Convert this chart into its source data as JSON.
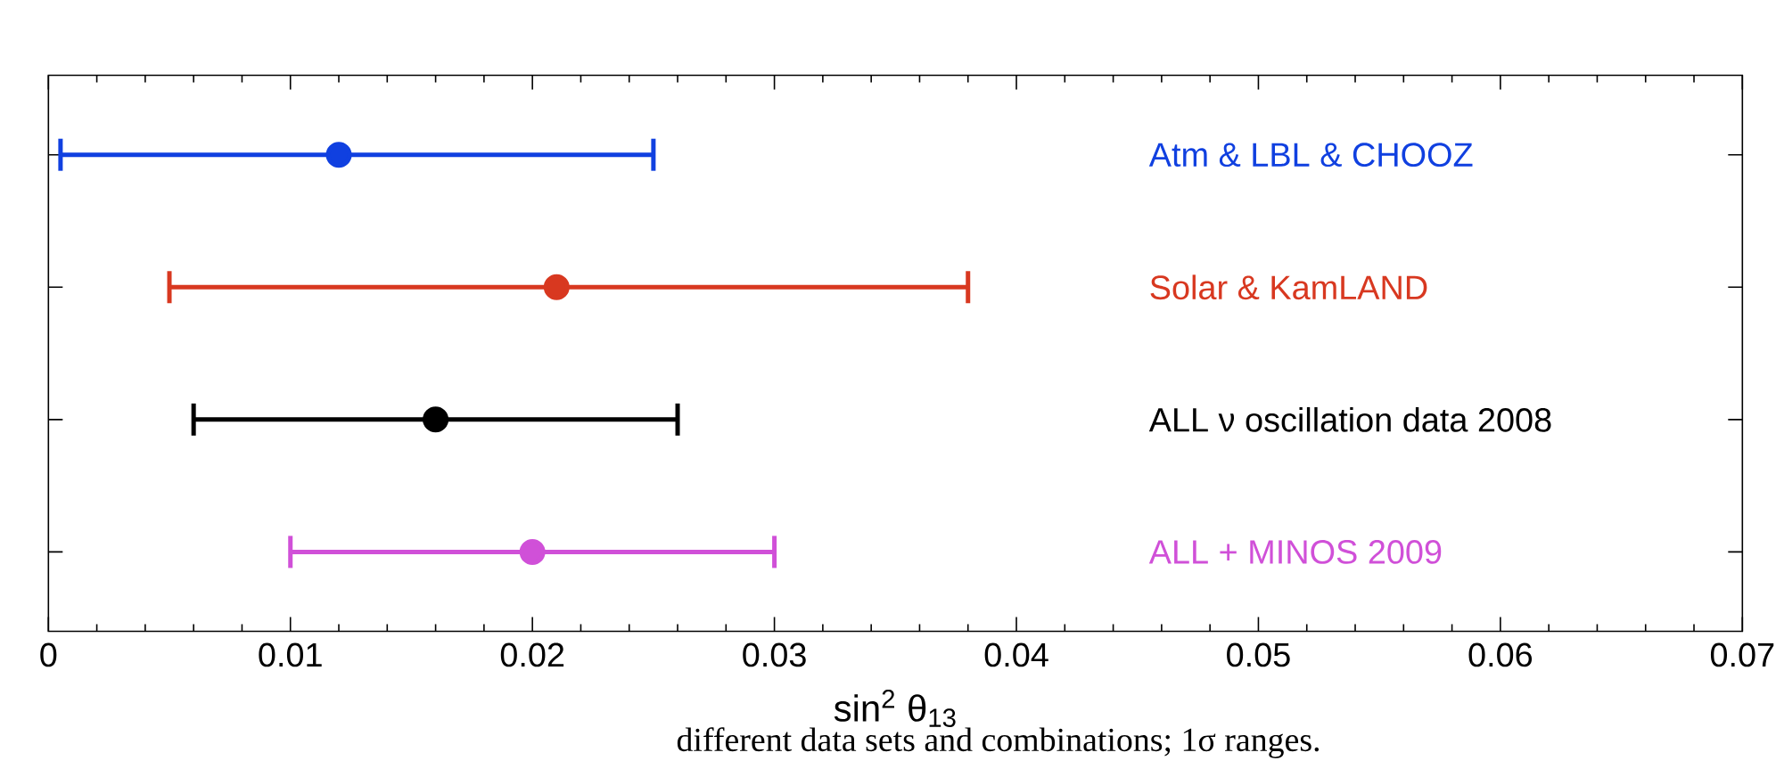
{
  "chart_data": {
    "type": "scatter",
    "orientation": "horizontal",
    "categories": [
      "Atm & LBL & CHOOZ",
      "Solar & KamLAND",
      "ALL ν oscillation data 2008",
      "ALL + MINOS 2009"
    ],
    "values": [
      0.012,
      0.021,
      0.016,
      0.02
    ],
    "errors": [
      [
        0.0005,
        0.025
      ],
      [
        0.005,
        0.038
      ],
      [
        0.006,
        0.026
      ],
      [
        0.01,
        0.03
      ]
    ],
    "colors": [
      "#1040e0",
      "#d83820",
      "#000000",
      "#d050d8"
    ],
    "xlabel": "sin$^{2}$ θ$_{13}$",
    "xlim": [
      0,
      0.07
    ],
    "xticks": [
      0,
      0.01,
      0.02,
      0.03,
      0.04,
      0.05,
      0.06,
      0.07
    ],
    "tick_labels": "x",
    "marker": "circle",
    "grid": false,
    "annotations": [
      "different data sets and combinations; 1σ ranges."
    ]
  }
}
